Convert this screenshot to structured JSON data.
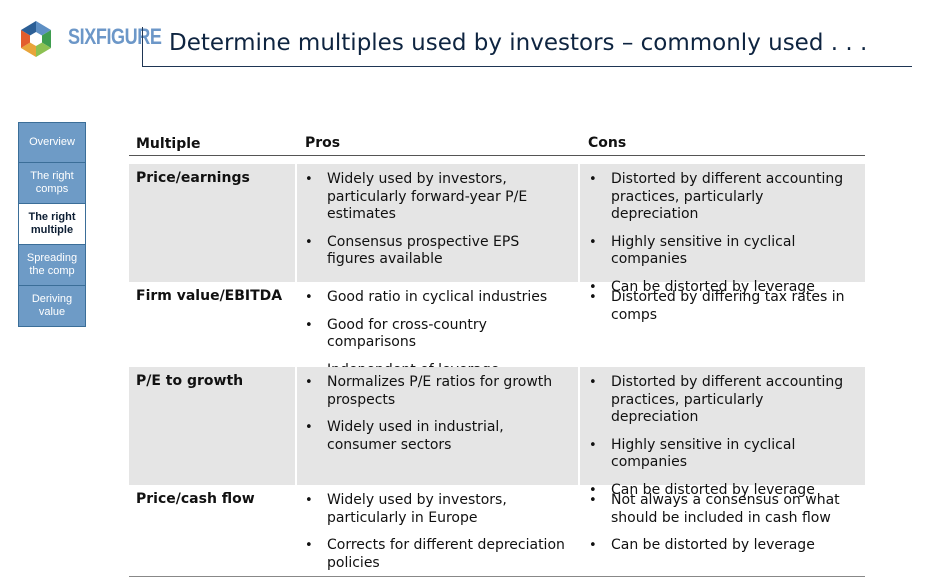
{
  "brand": {
    "name": "SIXFIGURE"
  },
  "title": "Determine multiples used by investors – commonly used . . .",
  "nav": {
    "items": [
      {
        "label": "Overview",
        "active": false
      },
      {
        "label": "The right comps",
        "active": false
      },
      {
        "label": "The right multiple",
        "active": true
      },
      {
        "label": "Spreading the comp",
        "active": false
      },
      {
        "label": "Deriving value",
        "active": false
      }
    ]
  },
  "table": {
    "headers": {
      "multiple": "Multiple",
      "pros": "Pros",
      "cons": "Cons"
    },
    "rows": [
      {
        "multiple": "Price/earnings",
        "pros": [
          "Widely used by investors, particularly forward-year P/E estimates",
          "Consensus prospective EPS figures available"
        ],
        "cons": [
          "Distorted by different accounting practices, particularly depreciation",
          "Highly sensitive in cyclical companies",
          "Can be distorted by leverage"
        ]
      },
      {
        "multiple": "Firm value/EBITDA",
        "pros": [
          "Good ratio in cyclical industries",
          "Good for cross-country comparisons",
          "Independent of leverage"
        ],
        "cons": [
          "Distorted by differing tax rates in comps"
        ]
      },
      {
        "multiple": "P/E to growth",
        "pros": [
          "Normalizes P/E ratios for growth prospects",
          "Widely used in industrial, consumer sectors"
        ],
        "cons": [
          "Distorted by different accounting practices, particularly depreciation",
          "Highly sensitive in cyclical companies",
          "Can be distorted by leverage"
        ]
      },
      {
        "multiple": "Price/cash flow",
        "pros": [
          "Widely used by investors, particularly in Europe",
          "Corrects for different depreciation policies"
        ],
        "cons": [
          "Not always a consensus on what should be included in cash flow",
          "Can be distorted by leverage"
        ]
      }
    ]
  }
}
